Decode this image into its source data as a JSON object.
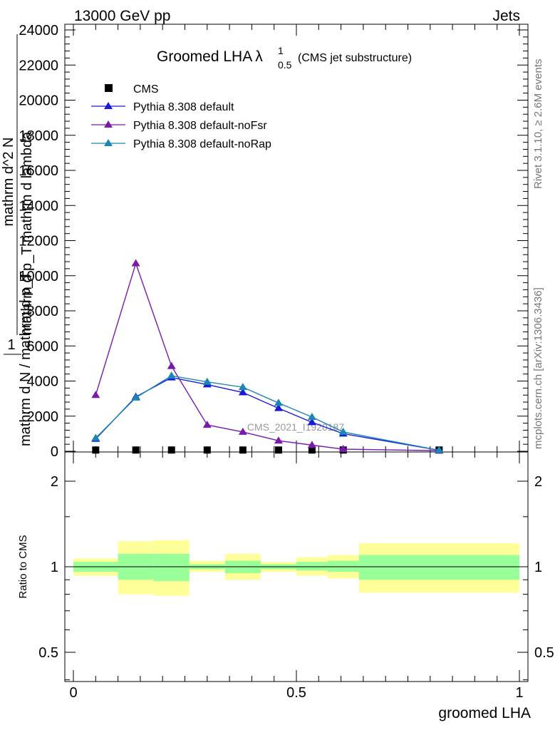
{
  "header": {
    "beam": "13000 GeV pp",
    "category": "Jets"
  },
  "title": {
    "main": "Groomed LHA",
    "lambda": "λ",
    "sup": "1",
    "sub": "0.5",
    "note": "(CMS jet substructure)"
  },
  "side": {
    "rivet": "Rivet 3.1.10, ≥ 2.6M events",
    "mcplots": "mcplots.cern.ch [arXiv:1306.3436]"
  },
  "watermark": "CMS_2021_I1920187",
  "main_ylabel": {
    "num_left": "1",
    "den_left": "mathrm d N / mathrm d p_T",
    "num_right": "mathrm d^2 N",
    "den_right": "mathrm d p_T mathrm d lambda"
  },
  "ratio_ylabel": "Ratio to CMS",
  "xlabel": "groomed LHA",
  "colors": {
    "cms": "#000000",
    "default": "#1a1ad6",
    "noFsr": "#7a1aaa",
    "noRap": "#1a86b4",
    "band_inner": "#99ff99",
    "band_outer": "#ffff99"
  },
  "chart_data": [
    {
      "type": "line",
      "panel": "main",
      "xlim": [
        0,
        1
      ],
      "ylim": [
        0,
        24000
      ],
      "yticks": [
        0,
        2000,
        4000,
        6000,
        8000,
        10000,
        12000,
        14000,
        16000,
        18000,
        20000,
        22000,
        24000
      ],
      "ytick_labels": [
        "0",
        "2000",
        "4000",
        "6000",
        "8000",
        "10000",
        "12000",
        "14000",
        "16000",
        "18000",
        "20000",
        "22000",
        "24000"
      ],
      "x": [
        0.05,
        0.14,
        0.22,
        0.3,
        0.38,
        0.46,
        0.535,
        0.605,
        0.82
      ],
      "series": [
        {
          "name": "CMS",
          "marker": "square",
          "values": [
            30,
            30,
            30,
            30,
            30,
            30,
            30,
            30,
            30
          ]
        },
        {
          "name": "Pythia 8.308 default",
          "marker": "triangle",
          "values": [
            700,
            3100,
            4200,
            3800,
            3350,
            2450,
            1650,
            1000,
            60
          ]
        },
        {
          "name": "Pythia 8.308 default-noFsr",
          "marker": "triangle",
          "values": [
            3200,
            10700,
            4850,
            1500,
            1100,
            600,
            350,
            120,
            30
          ]
        },
        {
          "name": "Pythia 8.308 default-noRap",
          "marker": "triangle",
          "values": [
            750,
            3050,
            4300,
            3950,
            3650,
            2750,
            1950,
            1100,
            60
          ]
        }
      ],
      "legend": "upper-left"
    },
    {
      "type": "area",
      "panel": "ratio",
      "xlim": [
        0,
        1
      ],
      "ylim": [
        0.35,
        2.3
      ],
      "log_y": true,
      "yticks": [
        0.5,
        1,
        2
      ],
      "ytick_labels": [
        "0.5",
        "1",
        "2"
      ],
      "xticks": [
        0,
        0.5,
        1
      ],
      "xtick_labels": [
        "0",
        "0.5",
        "1"
      ],
      "bins": [
        {
          "x0": 0.0,
          "x1": 0.1,
          "inner": [
            0.96,
            1.04
          ],
          "outer": [
            0.93,
            1.07
          ]
        },
        {
          "x0": 0.1,
          "x1": 0.18,
          "inner": [
            0.9,
            1.11
          ],
          "outer": [
            0.8,
            1.23
          ]
        },
        {
          "x0": 0.18,
          "x1": 0.26,
          "inner": [
            0.89,
            1.11
          ],
          "outer": [
            0.79,
            1.24
          ]
        },
        {
          "x0": 0.26,
          "x1": 0.34,
          "inner": [
            0.98,
            1.02
          ],
          "outer": [
            0.96,
            1.05
          ]
        },
        {
          "x0": 0.34,
          "x1": 0.42,
          "inner": [
            0.95,
            1.05
          ],
          "outer": [
            0.9,
            1.11
          ]
        },
        {
          "x0": 0.42,
          "x1": 0.5,
          "inner": [
            0.98,
            1.02
          ],
          "outer": [
            0.96,
            1.04
          ]
        },
        {
          "x0": 0.5,
          "x1": 0.57,
          "inner": [
            0.97,
            1.04
          ],
          "outer": [
            0.93,
            1.08
          ]
        },
        {
          "x0": 0.57,
          "x1": 0.64,
          "inner": [
            0.96,
            1.05
          ],
          "outer": [
            0.91,
            1.1
          ]
        },
        {
          "x0": 0.64,
          "x1": 1.0,
          "inner": [
            0.9,
            1.1
          ],
          "outer": [
            0.81,
            1.21
          ]
        }
      ]
    }
  ]
}
